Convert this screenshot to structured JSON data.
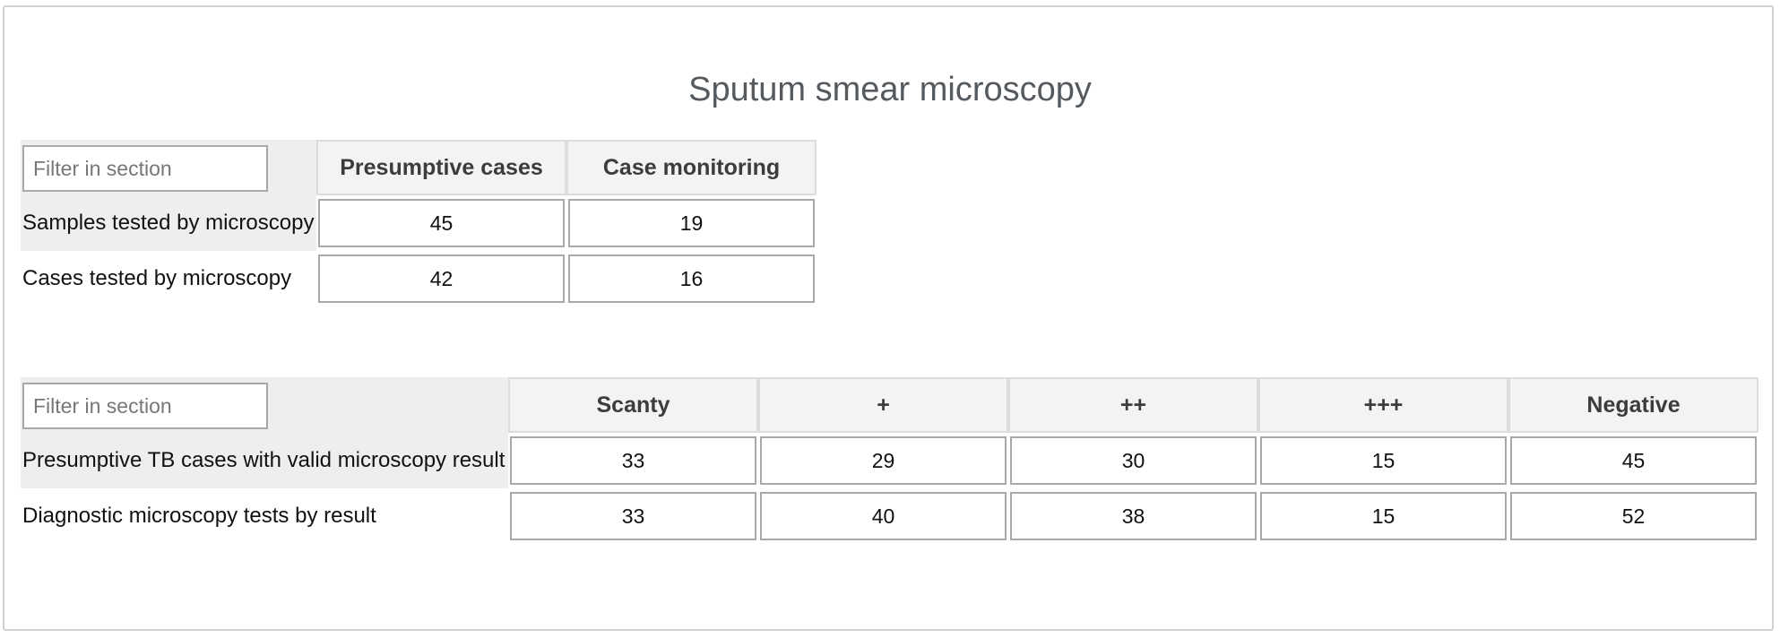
{
  "section": {
    "title": "Sputum smear microscopy"
  },
  "table1": {
    "filter_placeholder": "Filter in section",
    "columns": [
      "Presumptive cases",
      "Case monitoring"
    ],
    "rows": [
      {
        "label": "Samples tested by microscopy",
        "values": [
          "45",
          "19"
        ]
      },
      {
        "label": "Cases tested by microscopy",
        "values": [
          "42",
          "16"
        ]
      }
    ]
  },
  "table2": {
    "filter_placeholder": "Filter in section",
    "columns": [
      "Scanty",
      "+",
      "++",
      "+++",
      "Negative"
    ],
    "rows": [
      {
        "label": "Presumptive TB cases with valid microscopy result",
        "values": [
          "33",
          "29",
          "30",
          "15",
          "45"
        ]
      },
      {
        "label": "Diagnostic microscopy tests by result",
        "values": [
          "33",
          "40",
          "38",
          "15",
          "52"
        ]
      }
    ]
  }
}
